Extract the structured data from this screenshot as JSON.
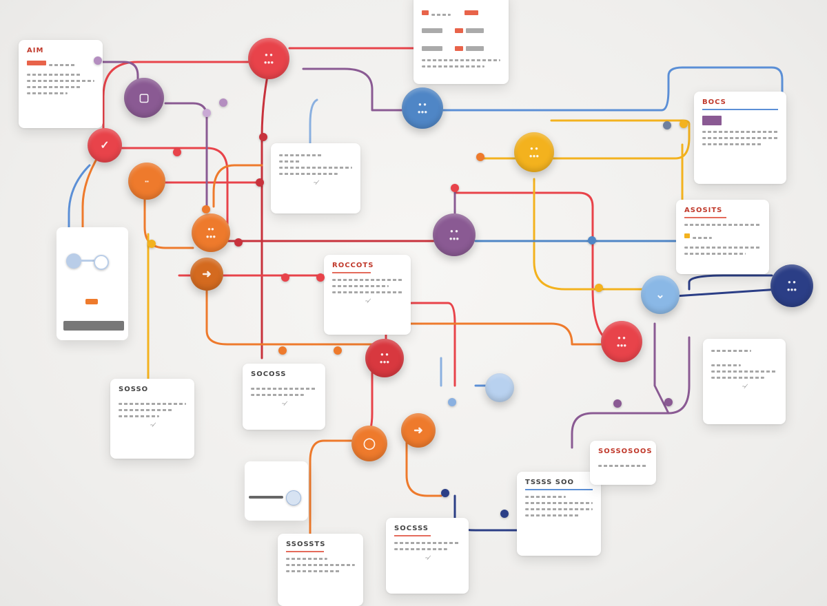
{
  "colors": {
    "red": "#e8434a",
    "orange": "#ee7a2c",
    "yellow": "#f3b21e",
    "purple": "#8a5a93",
    "blue": "#5b8fd6",
    "navy": "#2b3e86",
    "steel": "#4f86c6",
    "crimson": "#c8323c"
  },
  "cards": {
    "top_left": {
      "title": "AIM"
    },
    "center_left": {
      "title": ""
    },
    "center": {
      "title": "ROCCOTS"
    },
    "right_upper": {
      "title": "BOCS"
    },
    "right_mid": {
      "title": "ASOSITS"
    },
    "right_lower": {
      "title": ""
    },
    "left_lower": {
      "title": "SOSSO"
    },
    "center_lower": {
      "title": "SOCOSS"
    },
    "bottom_left": {
      "title": "SSOSSTS"
    },
    "bottom_center": {
      "title": "SOCSSS"
    },
    "bottom_right": {
      "title": "TSSSS SOO"
    },
    "bottom_right_small": {
      "title": "SOSSOSOOS"
    },
    "top_center": {
      "title": ""
    }
  },
  "icons": [
    "check-icon",
    "chevron-icon",
    "circle-icon",
    "arrow-icon",
    "square-icon"
  ]
}
